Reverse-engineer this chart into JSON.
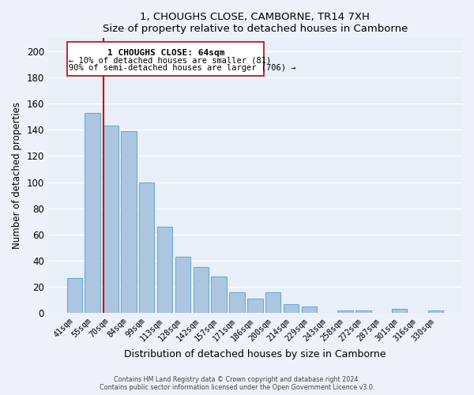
{
  "title": "1, CHOUGHS CLOSE, CAMBORNE, TR14 7XH",
  "subtitle": "Size of property relative to detached houses in Camborne",
  "xlabel": "Distribution of detached houses by size in Camborne",
  "ylabel": "Number of detached properties",
  "bar_labels": [
    "41sqm",
    "55sqm",
    "70sqm",
    "84sqm",
    "99sqm",
    "113sqm",
    "128sqm",
    "142sqm",
    "157sqm",
    "171sqm",
    "186sqm",
    "200sqm",
    "214sqm",
    "229sqm",
    "243sqm",
    "258sqm",
    "272sqm",
    "287sqm",
    "301sqm",
    "316sqm",
    "330sqm"
  ],
  "bar_heights": [
    27,
    153,
    143,
    139,
    100,
    66,
    43,
    35,
    28,
    16,
    11,
    16,
    7,
    5,
    0,
    2,
    2,
    0,
    3,
    0,
    2
  ],
  "bar_color": "#adc6e0",
  "bar_edge_color": "#6aaad4",
  "background_color": "#e8eff8",
  "grid_color": "#ffffff",
  "ylim": [
    0,
    210
  ],
  "yticks": [
    0,
    20,
    40,
    60,
    80,
    100,
    120,
    140,
    160,
    180,
    200
  ],
  "property_label": "1 CHOUGHS CLOSE: 64sqm",
  "annotation_line1": "← 10% of detached houses are smaller (81)",
  "annotation_line2": "90% of semi-detached houses are larger (706) →",
  "footer_line1": "Contains HM Land Registry data © Crown copyright and database right 2024.",
  "footer_line2": "Contains public sector information licensed under the Open Government Licence v3.0.",
  "fig_bg": "#edf2fa"
}
